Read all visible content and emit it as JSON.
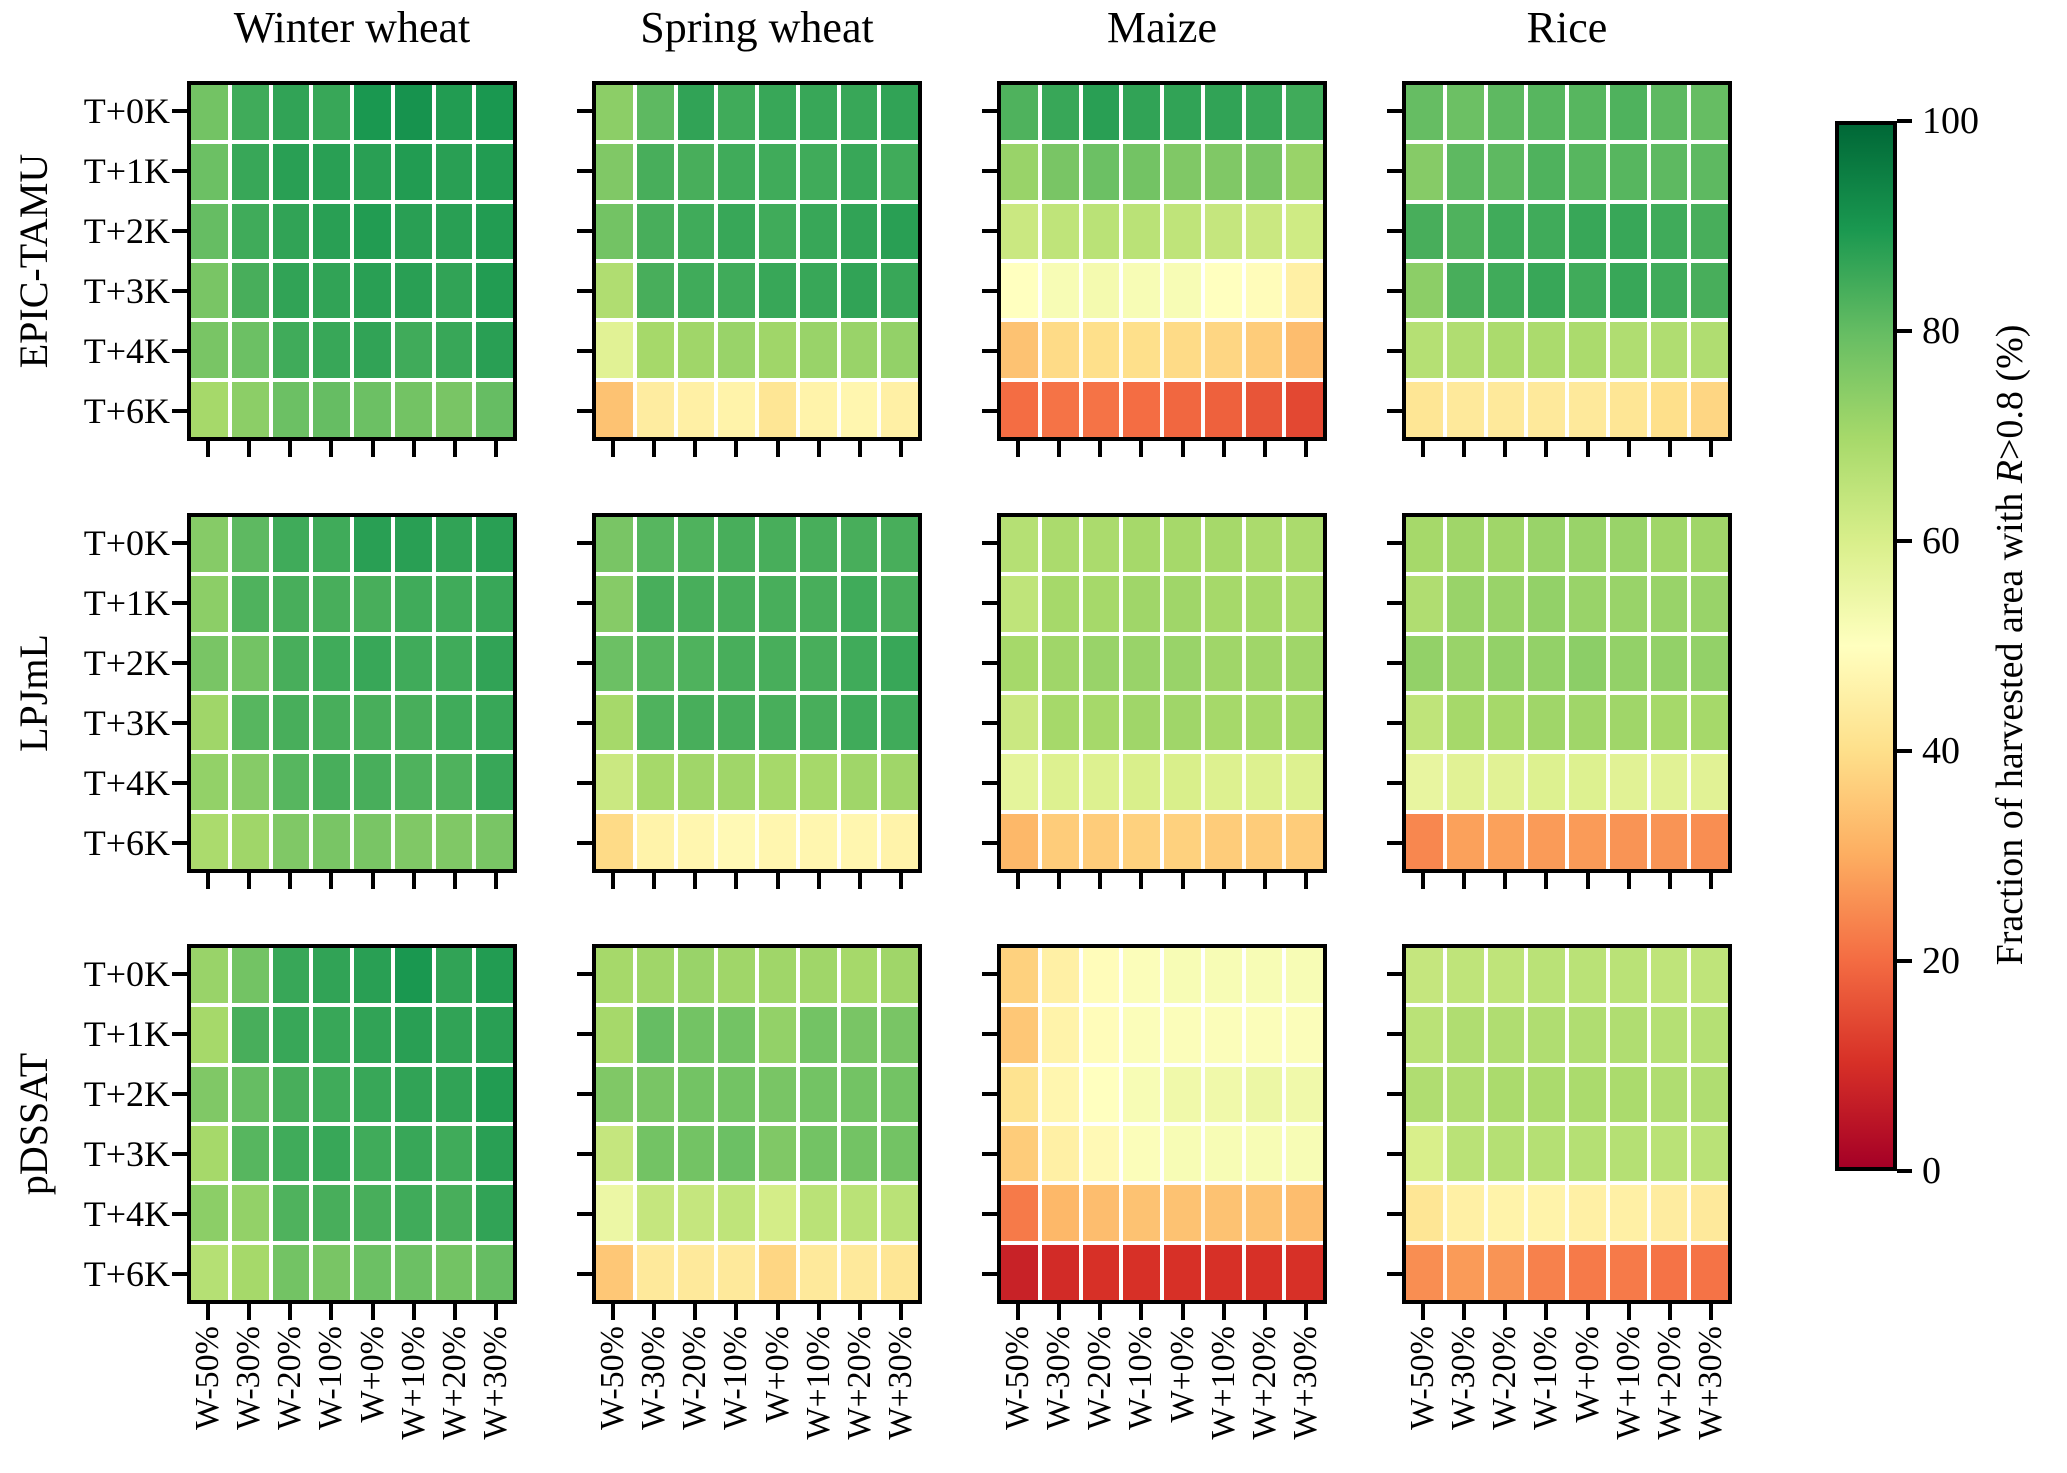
{
  "figure": {
    "colorbar": {
      "min": 0,
      "max": 100,
      "ticks": [
        0,
        20,
        40,
        60,
        80,
        100
      ],
      "tick_labels": [
        "0",
        "20",
        "40",
        "60",
        "80",
        "100"
      ],
      "label_prefix": "Fraction of harvested area with ",
      "label_r": "R",
      "label_suffix": ">0.8 (%)",
      "colormap": "RdYlGn",
      "colormap_stops": [
        [
          0.0,
          "#a50026"
        ],
        [
          0.1,
          "#d73027"
        ],
        [
          0.2,
          "#f46d43"
        ],
        [
          0.3,
          "#fdae61"
        ],
        [
          0.4,
          "#fee08b"
        ],
        [
          0.5,
          "#ffffbf"
        ],
        [
          0.6,
          "#d9ef8b"
        ],
        [
          0.7,
          "#a6d96a"
        ],
        [
          0.8,
          "#66bd63"
        ],
        [
          0.9,
          "#1a9850"
        ],
        [
          1.0,
          "#006837"
        ]
      ]
    }
  },
  "chart_data": {
    "type": "heatmap",
    "rows": [
      "EPIC-TAMU",
      "LPJmL",
      "pDSSAT"
    ],
    "columns": [
      "Winter wheat",
      "Spring wheat",
      "Maize",
      "Rice"
    ],
    "y_categories": [
      "T+0K",
      "T+1K",
      "T+2K",
      "T+3K",
      "T+4K",
      "T+6K"
    ],
    "x_categories": [
      "W-50%",
      "W-30%",
      "W-20%",
      "W-10%",
      "W+0%",
      "W+10%",
      "W+20%",
      "W+30%"
    ],
    "value_unit": "percent of harvested area with R>0.8",
    "value_range": [
      0,
      100
    ],
    "panels": [
      {
        "model": "EPIC-TAMU",
        "crop": "Winter wheat",
        "values": [
          [
            78,
            85,
            87,
            86,
            90,
            91,
            89,
            90
          ],
          [
            79,
            86,
            88,
            88,
            88,
            89,
            88,
            89
          ],
          [
            80,
            85,
            87,
            88,
            89,
            88,
            88,
            89
          ],
          [
            77,
            84,
            87,
            87,
            88,
            88,
            87,
            89
          ],
          [
            77,
            79,
            85,
            86,
            87,
            85,
            86,
            88
          ],
          [
            70,
            74,
            79,
            80,
            79,
            78,
            77,
            80
          ]
        ]
      },
      {
        "model": "EPIC-TAMU",
        "crop": "Spring wheat",
        "values": [
          [
            74,
            81,
            87,
            85,
            86,
            86,
            86,
            87
          ],
          [
            76,
            84,
            84,
            85,
            85,
            85,
            86,
            85
          ],
          [
            78,
            84,
            85,
            86,
            85,
            86,
            87,
            88
          ],
          [
            68,
            84,
            85,
            85,
            86,
            86,
            87,
            86
          ],
          [
            58,
            70,
            71,
            72,
            71,
            72,
            72,
            73
          ],
          [
            34,
            44,
            45,
            46,
            42,
            46,
            47,
            45
          ]
        ]
      },
      {
        "model": "EPIC-TAMU",
        "crop": "Maize",
        "values": [
          [
            83,
            86,
            88,
            87,
            87,
            87,
            86,
            85
          ],
          [
            72,
            77,
            79,
            78,
            76,
            76,
            77,
            72
          ],
          [
            63,
            65,
            66,
            66,
            65,
            64,
            63,
            62
          ],
          [
            50,
            52,
            53,
            52,
            52,
            50,
            49,
            45
          ],
          [
            34,
            39,
            40,
            40,
            39,
            38,
            36,
            33
          ],
          [
            20,
            21,
            21,
            20,
            19,
            18,
            16,
            14
          ]
        ]
      },
      {
        "model": "EPIC-TAMU",
        "crop": "Rice",
        "values": [
          [
            80,
            79,
            81,
            82,
            82,
            83,
            81,
            80
          ],
          [
            75,
            81,
            81,
            83,
            82,
            82,
            81,
            81
          ],
          [
            84,
            83,
            85,
            85,
            86,
            86,
            85,
            84
          ],
          [
            74,
            84,
            85,
            86,
            85,
            86,
            85,
            84
          ],
          [
            67,
            68,
            69,
            69,
            69,
            68,
            68,
            68
          ],
          [
            42,
            43,
            43,
            43,
            43,
            42,
            40,
            38
          ]
        ]
      },
      {
        "model": "LPJmL",
        "crop": "Winter wheat",
        "values": [
          [
            75,
            81,
            85,
            85,
            88,
            88,
            87,
            88
          ],
          [
            74,
            83,
            84,
            84,
            84,
            85,
            85,
            86
          ],
          [
            77,
            78,
            84,
            85,
            86,
            85,
            85,
            87
          ],
          [
            71,
            82,
            84,
            84,
            84,
            84,
            85,
            86
          ],
          [
            73,
            75,
            82,
            84,
            84,
            83,
            83,
            86
          ],
          [
            69,
            71,
            76,
            77,
            77,
            76,
            76,
            77
          ]
        ]
      },
      {
        "model": "LPJmL",
        "crop": "Spring wheat",
        "values": [
          [
            77,
            82,
            83,
            84,
            84,
            84,
            84,
            84
          ],
          [
            75,
            84,
            84,
            84,
            84,
            84,
            85,
            84
          ],
          [
            79,
            82,
            83,
            84,
            84,
            84,
            85,
            86
          ],
          [
            70,
            83,
            84,
            84,
            84,
            84,
            85,
            85
          ],
          [
            63,
            70,
            71,
            71,
            70,
            70,
            71,
            71
          ],
          [
            39,
            46,
            47,
            48,
            47,
            47,
            47,
            46
          ]
        ]
      },
      {
        "model": "LPJmL",
        "crop": "Maize",
        "values": [
          [
            67,
            69,
            69,
            70,
            70,
            70,
            69,
            69
          ],
          [
            65,
            70,
            70,
            71,
            71,
            70,
            70,
            69
          ],
          [
            70,
            71,
            72,
            72,
            72,
            71,
            71,
            71
          ],
          [
            63,
            70,
            70,
            71,
            71,
            70,
            70,
            70
          ],
          [
            57,
            59,
            59,
            60,
            60,
            59,
            59,
            59
          ],
          [
            32,
            36,
            36,
            37,
            37,
            36,
            36,
            36
          ]
        ]
      },
      {
        "model": "LPJmL",
        "crop": "Rice",
        "values": [
          [
            70,
            71,
            71,
            72,
            72,
            72,
            71,
            71
          ],
          [
            68,
            72,
            72,
            73,
            72,
            72,
            72,
            72
          ],
          [
            73,
            72,
            73,
            73,
            74,
            73,
            73,
            73
          ],
          [
            65,
            70,
            70,
            71,
            71,
            71,
            70,
            70
          ],
          [
            56,
            58,
            58,
            59,
            59,
            58,
            58,
            58
          ],
          [
            24,
            28,
            28,
            27,
            27,
            26,
            26,
            25
          ]
        ]
      },
      {
        "model": "pDSSAT",
        "crop": "Winter wheat",
        "values": [
          [
            72,
            78,
            86,
            87,
            88,
            90,
            87,
            89
          ],
          [
            70,
            84,
            86,
            86,
            87,
            88,
            87,
            88
          ],
          [
            76,
            80,
            84,
            85,
            86,
            87,
            87,
            89
          ],
          [
            70,
            82,
            85,
            86,
            85,
            86,
            85,
            88
          ],
          [
            74,
            73,
            83,
            84,
            84,
            85,
            84,
            87
          ],
          [
            67,
            70,
            78,
            77,
            79,
            79,
            78,
            80
          ]
        ]
      },
      {
        "model": "pDSSAT",
        "crop": "Spring wheat",
        "values": [
          [
            70,
            71,
            72,
            71,
            71,
            71,
            70,
            71
          ],
          [
            70,
            80,
            78,
            78,
            73,
            78,
            77,
            77
          ],
          [
            76,
            77,
            78,
            78,
            77,
            78,
            78,
            78
          ],
          [
            64,
            78,
            78,
            79,
            76,
            78,
            78,
            78
          ],
          [
            55,
            64,
            64,
            65,
            61,
            66,
            66,
            66
          ],
          [
            35,
            43,
            43,
            43,
            38,
            43,
            43,
            42
          ]
        ]
      },
      {
        "model": "pDSSAT",
        "crop": "Maize",
        "values": [
          [
            37,
            45,
            49,
            51,
            52,
            52,
            52,
            52
          ],
          [
            35,
            46,
            49,
            51,
            51,
            51,
            51,
            51
          ],
          [
            41,
            47,
            50,
            52,
            54,
            54,
            55,
            54
          ],
          [
            36,
            45,
            48,
            51,
            52,
            52,
            52,
            52
          ],
          [
            22,
            32,
            33,
            34,
            34,
            34,
            34,
            33
          ],
          [
            7,
            9,
            10,
            10,
            10,
            10,
            10,
            10
          ]
        ]
      },
      {
        "model": "pDSSAT",
        "crop": "Rice",
        "values": [
          [
            64,
            65,
            65,
            66,
            66,
            66,
            65,
            65
          ],
          [
            66,
            68,
            68,
            68,
            68,
            68,
            67,
            67
          ],
          [
            68,
            68,
            69,
            69,
            69,
            69,
            68,
            68
          ],
          [
            60,
            66,
            67,
            67,
            67,
            67,
            66,
            66
          ],
          [
            42,
            45,
            46,
            46,
            45,
            45,
            44,
            43
          ],
          [
            25,
            27,
            26,
            23,
            22,
            22,
            21,
            21
          ]
        ]
      }
    ]
  }
}
